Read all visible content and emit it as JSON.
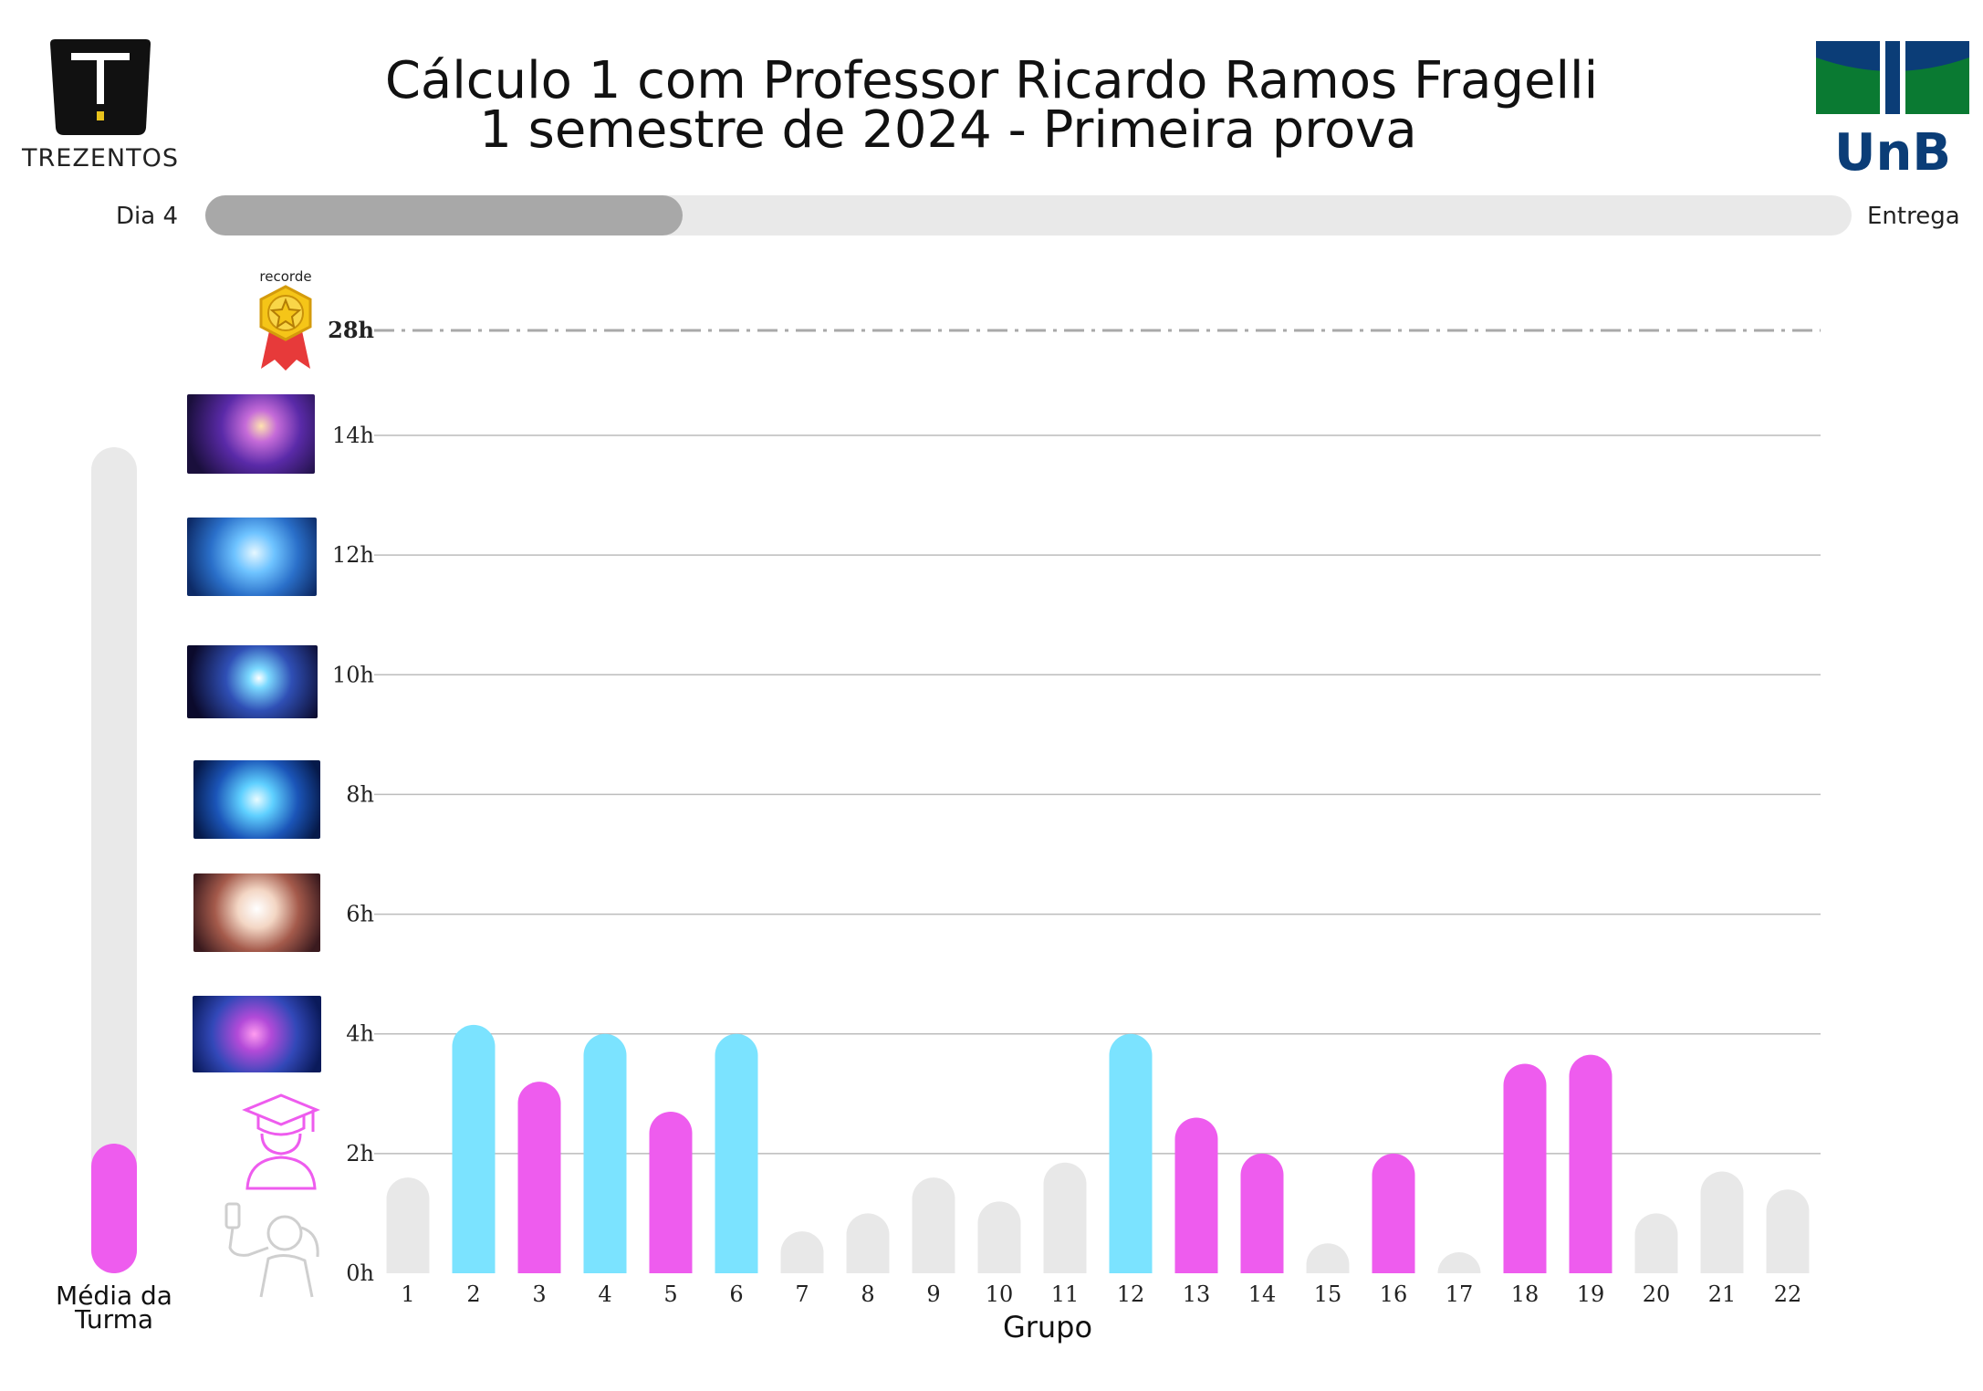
{
  "header": {
    "title_line1": "Cálculo 1 com Professor Ricardo Ramos Fragelli",
    "title_line2": "1 semestre de 2024 - Primeira prova",
    "left_brand": "TREZENTOS",
    "right_brand": "UnB"
  },
  "progress": {
    "left_label": "Dia  4",
    "right_label": "Entrega",
    "fraction": 0.29
  },
  "class_mean": {
    "label_line1": "Média da",
    "label_line2": "Turma",
    "value_hours": 2.2,
    "max_hours": 14
  },
  "record": {
    "label": "recorde"
  },
  "colors": {
    "cyan": "#7be3ff",
    "magenta": "#ee5cee",
    "gray": "#e8e8e8",
    "grid": "#bcbcbc",
    "record_line": "#a9a9a9",
    "progress_fill": "#a8a8a8",
    "progress_track": "#e9e9e9"
  },
  "rank_icons": [
    "selfie-person-icon",
    "graduate-icon",
    "brain-level-1-icon",
    "brain-level-2-icon",
    "brain-level-3-icon",
    "brain-level-4-icon",
    "brain-level-5-icon",
    "brain-level-6-icon",
    "medal-icon"
  ],
  "chart_data": {
    "type": "bar",
    "xlabel": "Grupo",
    "ylabel": "",
    "categories": [
      "1",
      "2",
      "3",
      "4",
      "5",
      "6",
      "7",
      "8",
      "9",
      "10",
      "11",
      "12",
      "13",
      "14",
      "15",
      "16",
      "17",
      "18",
      "19",
      "20",
      "21",
      "22"
    ],
    "values": [
      1.6,
      4.15,
      3.2,
      4.0,
      2.7,
      4.0,
      0.7,
      1.0,
      1.6,
      1.2,
      1.85,
      4.0,
      2.6,
      2.0,
      0.5,
      2.0,
      0.35,
      3.5,
      3.65,
      1.0,
      1.7,
      1.4
    ],
    "highlight": [
      "gray",
      "cyan",
      "magenta",
      "cyan",
      "magenta",
      "cyan",
      "gray",
      "gray",
      "gray",
      "gray",
      "gray",
      "cyan",
      "magenta",
      "magenta",
      "gray",
      "magenta",
      "gray",
      "magenta",
      "magenta",
      "gray",
      "gray",
      "gray"
    ],
    "y_ticks": [
      0,
      2,
      4,
      6,
      8,
      10,
      12,
      14
    ],
    "y_tick_labels": [
      "0h",
      "2h",
      "4h",
      "6h",
      "8h",
      "10h",
      "12h",
      "14h"
    ],
    "record_value": 28,
    "record_label": "28h",
    "ylim": [
      0,
      14
    ],
    "grid": true
  }
}
